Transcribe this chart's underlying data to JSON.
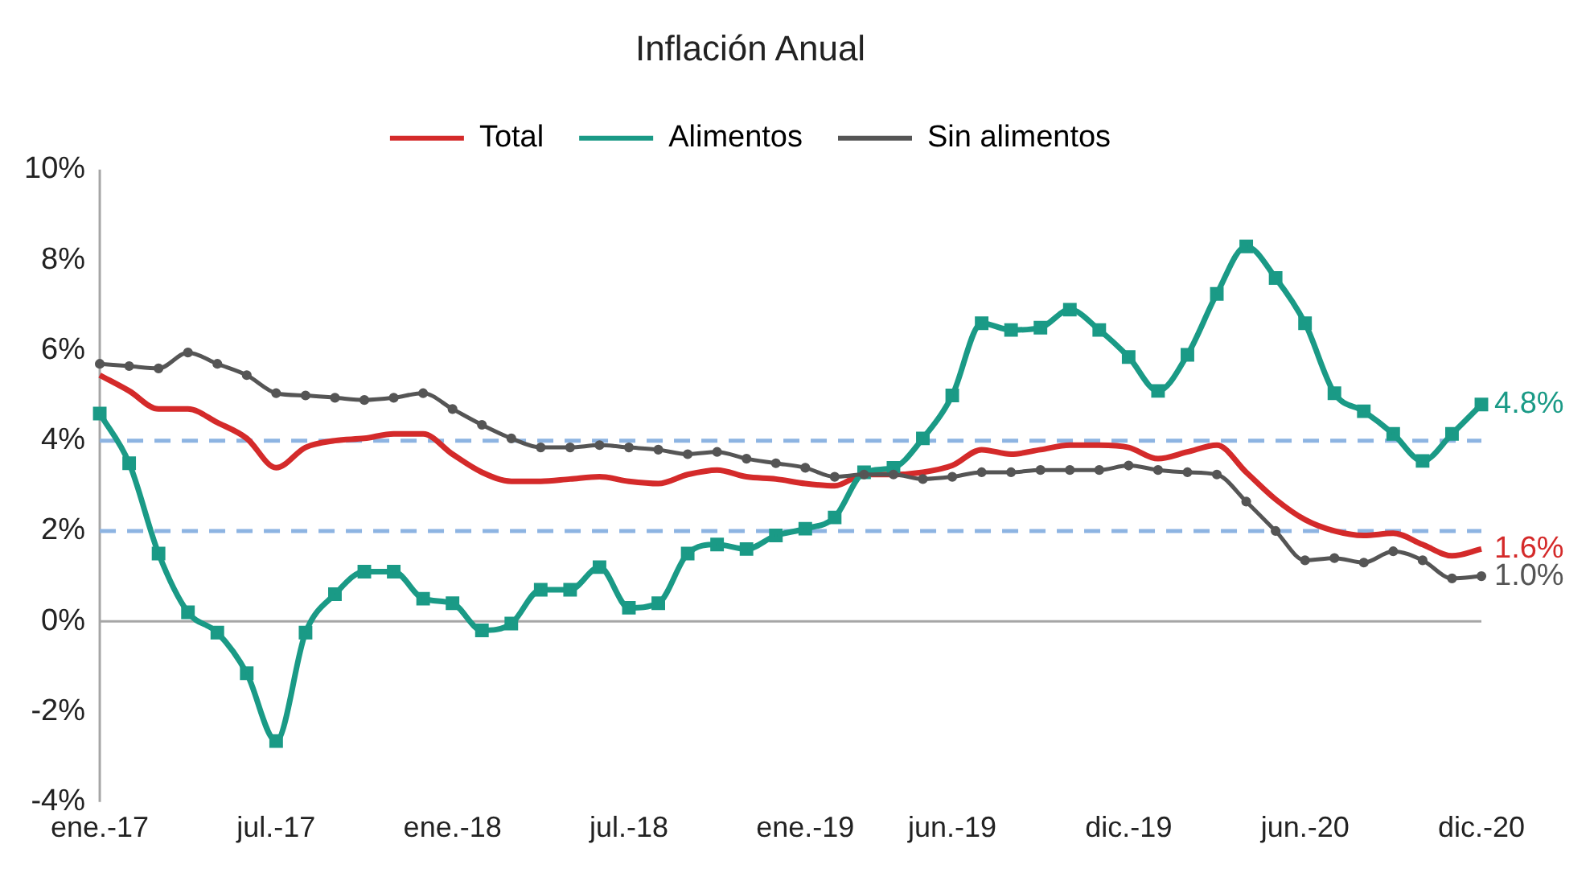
{
  "chart_data": {
    "type": "line",
    "title": "Inflación Anual",
    "categories": [
      "ene.-17",
      null,
      null,
      null,
      null,
      null,
      "jul.-17",
      null,
      null,
      null,
      null,
      null,
      "ene.-18",
      null,
      null,
      null,
      null,
      null,
      "jul.-18",
      null,
      null,
      null,
      null,
      null,
      "ene.-19",
      null,
      null,
      null,
      null,
      "jun.-19",
      null,
      null,
      null,
      null,
      null,
      "dic.-19",
      null,
      null,
      null,
      null,
      null,
      "jun.-20",
      null,
      null,
      null,
      null,
      null,
      "dic.-20"
    ],
    "series": [
      {
        "name": "Total",
        "color": "#d42a2a",
        "marker": "none",
        "values": [
          5.45,
          5.1,
          4.7,
          4.7,
          4.4,
          4.05,
          3.4,
          3.85,
          4.0,
          4.05,
          4.15,
          4.15,
          3.7,
          3.3,
          3.1,
          3.1,
          3.15,
          3.2,
          3.1,
          3.05,
          3.25,
          3.35,
          3.2,
          3.15,
          3.05,
          3.0,
          3.25,
          3.25,
          3.3,
          3.45,
          3.8,
          3.7,
          3.8,
          3.9,
          3.9,
          3.85,
          3.6,
          3.75,
          3.9,
          3.3,
          2.7,
          2.25,
          2.0,
          1.9,
          1.95,
          1.7,
          1.45,
          1.6
        ]
      },
      {
        "name": "Alimentos",
        "color": "#1a9a86",
        "marker": "square",
        "values": [
          4.6,
          3.5,
          1.5,
          0.2,
          -0.25,
          -1.15,
          -2.65,
          -0.25,
          0.6,
          1.1,
          1.1,
          0.5,
          0.4,
          -0.2,
          -0.05,
          0.7,
          0.7,
          1.2,
          0.3,
          0.4,
          1.5,
          1.7,
          1.6,
          1.9,
          2.05,
          2.3,
          3.3,
          3.4,
          4.05,
          5.0,
          6.6,
          6.45,
          6.5,
          6.9,
          6.45,
          5.85,
          5.1,
          5.9,
          7.25,
          8.3,
          7.6,
          6.6,
          5.05,
          4.65,
          4.15,
          3.55,
          4.15,
          4.8
        ]
      },
      {
        "name": "Sin alimentos",
        "color": "#555555",
        "marker": "circle",
        "values": [
          5.7,
          5.65,
          5.6,
          5.95,
          5.7,
          5.45,
          5.05,
          5.0,
          4.95,
          4.9,
          4.95,
          5.05,
          4.7,
          4.35,
          4.05,
          3.85,
          3.85,
          3.9,
          3.85,
          3.8,
          3.7,
          3.75,
          3.6,
          3.5,
          3.4,
          3.2,
          3.25,
          3.25,
          3.15,
          3.2,
          3.3,
          3.3,
          3.35,
          3.35,
          3.35,
          3.45,
          3.35,
          3.3,
          3.25,
          2.65,
          2.0,
          1.35,
          1.4,
          1.3,
          1.55,
          1.35,
          0.95,
          1.0
        ]
      }
    ],
    "ylim": [
      -4,
      10
    ],
    "yticks": [
      {
        "value": -4,
        "label": "-4%"
      },
      {
        "value": -2,
        "label": "-2%"
      },
      {
        "value": 0,
        "label": "0%"
      },
      {
        "value": 2,
        "label": "2%"
      },
      {
        "value": 4,
        "label": "4%"
      },
      {
        "value": 6,
        "label": "6%"
      },
      {
        "value": 8,
        "label": "8%"
      },
      {
        "value": 10,
        "label": "10%"
      }
    ],
    "ref_lines": [
      {
        "axis": "y",
        "value": 4,
        "color": "#8db4e2",
        "line_style": "dashed"
      },
      {
        "axis": "y",
        "value": 2,
        "color": "#8db4e2",
        "line_style": "dashed"
      }
    ],
    "annotations": [
      {
        "text": "4.8%",
        "x": "dic.-20",
        "y": 4.8
      },
      {
        "text": "1.6%",
        "x": "dic.-20",
        "y": 1.6
      },
      {
        "text": "1.0%",
        "x": "dic.-20",
        "y": 1.0
      }
    ],
    "legend": "top",
    "grid": false,
    "line_style": "solid"
  }
}
